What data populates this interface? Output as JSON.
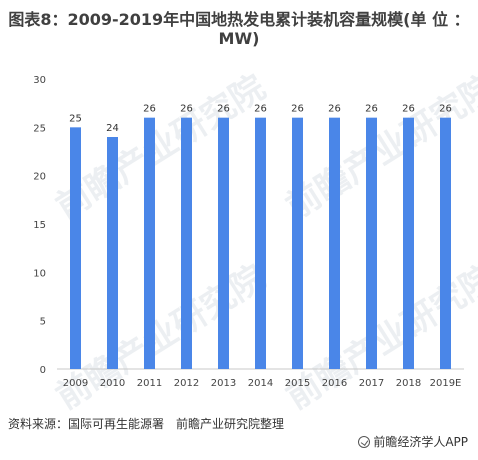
{
  "title": "图表8：2009-2019年中国地热发电累计装机容量规模(单 位 ：MW)",
  "source": "资料来源：国际可再生能源署　前瞻产业研究院整理",
  "brand": "前瞻经济学人APP",
  "watermark": "前瞻产业研究院",
  "chart_data": {
    "type": "bar",
    "categories": [
      "2009",
      "2010",
      "2011",
      "2012",
      "2013",
      "2014",
      "2015",
      "2016",
      "2017",
      "2018",
      "2019E"
    ],
    "values": [
      25,
      24,
      26,
      26,
      26,
      26,
      26,
      26,
      26,
      26,
      26
    ],
    "value_labels": [
      "25",
      "24",
      "26",
      "26",
      "26",
      "26",
      "26",
      "26",
      "26",
      "26",
      "26"
    ],
    "yticks": [
      "0",
      "5",
      "10",
      "15",
      "20",
      "25",
      "30"
    ],
    "ylim": [
      0,
      30
    ],
    "bar_color": "#4A86E8",
    "grid": false
  }
}
